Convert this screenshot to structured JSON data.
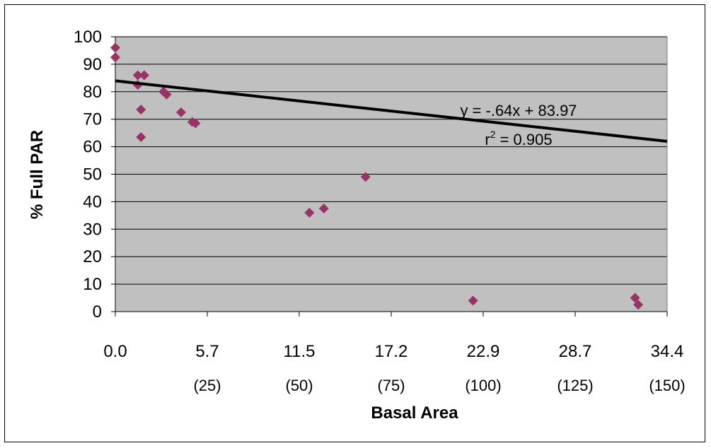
{
  "chart_data": {
    "type": "scatter",
    "title": "",
    "xlabel": "Basal Area",
    "ylabel": "% Full PAR",
    "xlim": [
      0.0,
      34.4
    ],
    "ylim": [
      0,
      100
    ],
    "x_ticks": [
      "0.0",
      "5.7",
      "11.5",
      "17.2",
      "22.9",
      "28.7",
      "34.4"
    ],
    "x_ticks_secondary": [
      "",
      "(25)",
      "(50)",
      "(75)",
      "(100)",
      "(125)",
      "(150)"
    ],
    "y_ticks": [
      "0",
      "10",
      "20",
      "30",
      "40",
      "50",
      "60",
      "70",
      "80",
      "90",
      "100"
    ],
    "grid": true,
    "legend": "none",
    "series": [
      {
        "marker": "diamond",
        "color": "#993366",
        "points": [
          [
            0.0,
            96
          ],
          [
            0.0,
            92.5
          ],
          [
            1.4,
            86
          ],
          [
            1.8,
            86
          ],
          [
            1.4,
            82.5
          ],
          [
            1.6,
            73.5
          ],
          [
            1.6,
            63.5
          ],
          [
            3.0,
            80
          ],
          [
            3.2,
            79
          ],
          [
            4.1,
            72.5
          ],
          [
            4.8,
            69
          ],
          [
            5.0,
            68.5
          ],
          [
            12.1,
            36
          ],
          [
            13.0,
            37.5
          ],
          [
            15.6,
            49
          ],
          [
            22.3,
            4
          ],
          [
            32.4,
            5
          ],
          [
            32.6,
            2.5
          ]
        ]
      }
    ],
    "trendline": {
      "slope": -0.64,
      "intercept": 83.97,
      "color": "#000000",
      "equation_label": "y = -.64x + 83.97",
      "r2_prefix": "r",
      "r2_superscript": "2",
      "r2_value": " = 0.905"
    },
    "colors": {
      "plot_background": "#c0c0c0",
      "gridline": "#000000",
      "marker": "#993366"
    }
  }
}
